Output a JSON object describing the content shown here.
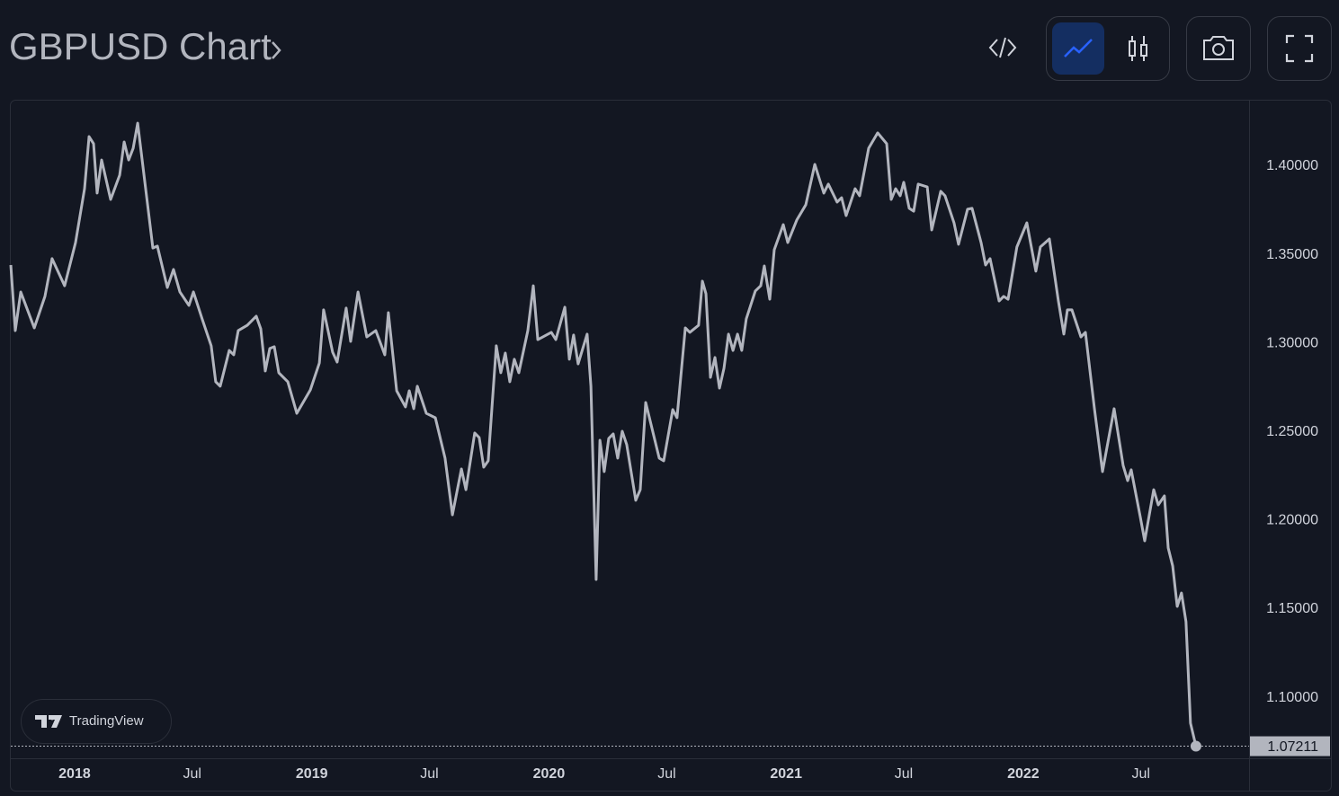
{
  "chart_data": {
    "type": "line",
    "title": "GBPUSD Chart",
    "branding": "TradingView",
    "color": "#b2b5be",
    "grid": false,
    "x": [
      2017.731,
      2017.75,
      2017.773,
      2017.83,
      2017.875,
      2017.905,
      2017.958,
      2018.004,
      2018.042,
      2018.061,
      2018.08,
      2018.095,
      2018.114,
      2018.152,
      2018.19,
      2018.209,
      2018.228,
      2018.247,
      2018.266,
      2018.33,
      2018.349,
      2018.391,
      2018.417,
      2018.444,
      2018.482,
      2018.501,
      2018.539,
      2018.576,
      2018.595,
      2018.614,
      2018.652,
      2018.671,
      2018.69,
      2018.728,
      2018.766,
      2018.785,
      2018.804,
      2018.823,
      2018.842,
      2018.861,
      2018.899,
      2018.937,
      2018.994,
      2019.032,
      2019.05,
      2019.088,
      2019.107,
      2019.145,
      2019.164,
      2019.195,
      2019.232,
      2019.27,
      2019.308,
      2019.323,
      2019.358,
      2019.395,
      2019.411,
      2019.43,
      2019.445,
      2019.483,
      2019.521,
      2019.562,
      2019.593,
      2019.631,
      2019.65,
      2019.687,
      2019.706,
      2019.725,
      2019.744,
      2019.778,
      2019.797,
      2019.816,
      2019.835,
      2019.854,
      2019.873,
      2019.911,
      2019.934,
      2019.953,
      2020.01,
      2020.029,
      2020.067,
      2020.086,
      2020.104,
      2020.123,
      2020.161,
      2020.177,
      2020.199,
      2020.215,
      2020.233,
      2020.252,
      2020.271,
      2020.29,
      2020.309,
      2020.328,
      2020.366,
      2020.385,
      2020.408,
      2020.465,
      2020.484,
      2020.522,
      2020.54,
      2020.575,
      2020.594,
      2020.631,
      2020.647,
      2020.662,
      2020.681,
      2020.7,
      2020.719,
      2020.738,
      2020.757,
      2020.776,
      2020.795,
      2020.813,
      2020.832,
      2020.87,
      2020.893,
      2020.908,
      2020.931,
      2020.95,
      2020.988,
      2021.007,
      2021.045,
      2021.083,
      2021.121,
      2021.159,
      2021.178,
      2021.215,
      2021.234,
      2021.253,
      2021.291,
      2021.31,
      2021.348,
      2021.386,
      2021.424,
      2021.443,
      2021.462,
      2021.481,
      2021.496,
      2021.519,
      2021.538,
      2021.557,
      2021.595,
      2021.614,
      2021.652,
      2021.67,
      2021.708,
      2021.727,
      2021.765,
      2021.784,
      2021.822,
      2021.841,
      2021.86,
      2021.898,
      2021.917,
      2021.936,
      2021.973,
      2022.015,
      2022.053,
      2022.072,
      2022.11,
      2022.148,
      2022.171,
      2022.186,
      2022.205,
      2022.243,
      2022.262,
      2022.3,
      2022.334,
      2022.383,
      2022.421,
      2022.44,
      2022.455,
      2022.493,
      2022.512,
      2022.55,
      2022.569,
      2022.595,
      2022.611,
      2022.63,
      2022.649,
      2022.667,
      2022.686,
      2022.705,
      2022.728
    ],
    "values": [
      1.3437,
      1.3067,
      1.3285,
      1.3082,
      1.326,
      1.3473,
      1.332,
      1.3564,
      1.3868,
      1.4162,
      1.4122,
      1.3843,
      1.403,
      1.3807,
      1.3944,
      1.4132,
      1.403,
      1.4096,
      1.4238,
      1.3533,
      1.3544,
      1.331,
      1.3412,
      1.3285,
      1.3209,
      1.3285,
      1.3128,
      1.2981,
      1.2778,
      1.2753,
      1.2955,
      1.293,
      1.3067,
      1.3097,
      1.3148,
      1.3077,
      1.2839,
      1.2966,
      1.2976,
      1.2829,
      1.2778,
      1.26,
      1.2732,
      1.2884,
      1.3184,
      1.2945,
      1.2889,
      1.3194,
      1.3006,
      1.3285,
      1.3031,
      1.3067,
      1.293,
      1.3168,
      1.2727,
      1.2636,
      1.2727,
      1.2626,
      1.2753,
      1.26,
      1.2575,
      1.2347,
      1.2027,
      1.2286,
      1.2169,
      1.2489,
      1.2463,
      1.2296,
      1.2332,
      1.2981,
      1.2829,
      1.294,
      1.2778,
      1.2905,
      1.2829,
      1.3067,
      1.332,
      1.3016,
      1.3057,
      1.3016,
      1.3199,
      1.2905,
      1.3042,
      1.2879,
      1.3047,
      1.2753,
      1.1662,
      1.2448,
      1.2271,
      1.2458,
      1.2484,
      1.2347,
      1.2499,
      1.2423,
      1.2109,
      1.2169,
      1.2661,
      1.2347,
      1.2332,
      1.2621,
      1.2575,
      1.3082,
      1.3057,
      1.3097,
      1.3346,
      1.3275,
      1.2803,
      1.2915,
      1.2742,
      1.2854,
      1.3047,
      1.2955,
      1.3047,
      1.2955,
      1.3133,
      1.329,
      1.332,
      1.3432,
      1.3244,
      1.3523,
      1.3665,
      1.3564,
      1.3691,
      1.3777,
      1.4005,
      1.3843,
      1.3894,
      1.3792,
      1.3817,
      1.3716,
      1.3868,
      1.3828,
      1.4096,
      1.4183,
      1.4122,
      1.3807,
      1.3868,
      1.3828,
      1.3904,
      1.3757,
      1.3741,
      1.3894,
      1.3878,
      1.3635,
      1.3853,
      1.3828,
      1.3675,
      1.3554,
      1.3752,
      1.3757,
      1.3564,
      1.3437,
      1.3473,
      1.3234,
      1.326,
      1.3244,
      1.3539,
      1.3675,
      1.3402,
      1.3539,
      1.3584,
      1.3234,
      1.3047,
      1.3184,
      1.3184,
      1.3031,
      1.3057,
      1.2626,
      1.2271,
      1.2626,
      1.2306,
      1.222,
      1.2281,
      1.2017,
      1.188,
      1.2169,
      1.2083,
      1.2134,
      1.184,
      1.1738,
      1.151,
      1.1586,
      1.1424,
      1.0851,
      1.07211
    ],
    "xlim": [
      2017.731,
      2022.952
    ],
    "ylim": [
      1.0658,
      1.4365
    ],
    "xticks": [
      2018,
      {
        "value": 2018.496,
        "label": "Jul"
      },
      2019,
      {
        "value": 2019.496,
        "label": "Jul"
      },
      2020,
      {
        "value": 2020.497,
        "label": "Jul"
      },
      2021,
      {
        "value": 2021.496,
        "label": "Jul"
      },
      2022,
      {
        "value": 2022.496,
        "label": "Jul"
      }
    ],
    "yticks": [
      {
        "value": 1.1,
        "label": "1.10000"
      },
      {
        "value": 1.15,
        "label": "1.15000"
      },
      {
        "value": 1.2,
        "label": "1.20000"
      },
      {
        "value": 1.25,
        "label": "1.25000"
      },
      {
        "value": 1.3,
        "label": "1.30000"
      },
      {
        "value": 1.35,
        "label": "1.35000"
      },
      {
        "value": 1.4,
        "label": "1.40000"
      }
    ]
  }
}
